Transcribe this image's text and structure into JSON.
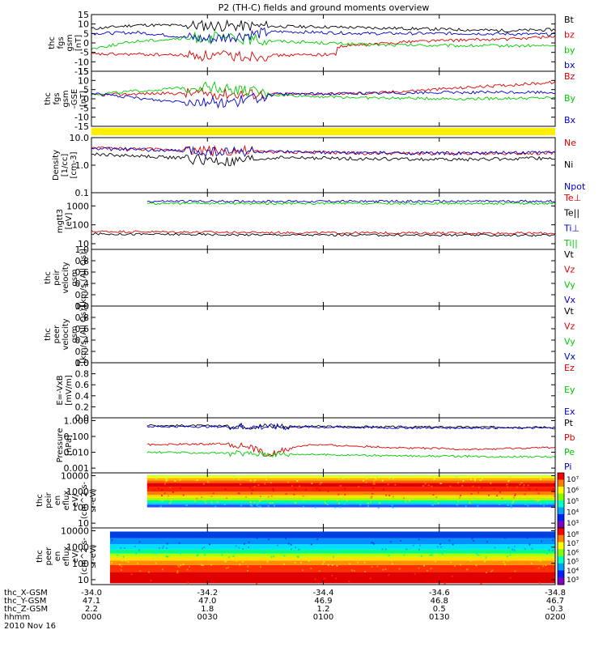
{
  "title": "P2 (TH-C) fields and ground moments overview",
  "colors": {
    "black": "#000000",
    "red": "#dd0000",
    "green": "#00cc00",
    "blue": "#0000cc",
    "yellow": "#ffee00",
    "white": "#ffffff"
  },
  "chart_data": [
    {
      "type": "line",
      "ylabel": [
        "thc",
        "fgs",
        "gsm",
        "[nT]"
      ],
      "ylim": [
        -15,
        15
      ],
      "yticks": [
        "15",
        "10",
        "5",
        "0",
        "-5",
        "-10",
        "-15"
      ],
      "legend": [
        {
          "name": "Bt",
          "color": "black"
        },
        {
          "name": "bz",
          "color": "red"
        },
        {
          "name": "by",
          "color": "green"
        },
        {
          "name": "bx",
          "color": "blue"
        }
      ],
      "series": [
        {
          "name": "Bt",
          "color": "black",
          "points": [
            [
              0,
              7.5
            ],
            [
              0.1,
              9.5
            ],
            [
              0.3,
              9
            ],
            [
              0.5,
              8.5
            ],
            [
              0.7,
              7.5
            ],
            [
              0.9,
              6.5
            ],
            [
              1,
              7
            ]
          ]
        },
        {
          "name": "bz",
          "color": "red",
          "points": [
            [
              0,
              -6
            ],
            [
              0.1,
              -6
            ],
            [
              0.3,
              -7
            ],
            [
              0.53,
              -6
            ],
            [
              0.53,
              -2
            ],
            [
              0.7,
              1
            ],
            [
              0.9,
              2
            ],
            [
              1,
              3.5
            ]
          ]
        },
        {
          "name": "by",
          "color": "green",
          "points": [
            [
              0,
              -3
            ],
            [
              0.1,
              1
            ],
            [
              0.25,
              3
            ],
            [
              0.4,
              1
            ],
            [
              0.6,
              -1
            ],
            [
              0.8,
              -1.5
            ],
            [
              1,
              -1.5
            ]
          ]
        },
        {
          "name": "bx",
          "color": "blue",
          "points": [
            [
              0,
              5
            ],
            [
              0.1,
              5.5
            ],
            [
              0.25,
              2
            ],
            [
              0.4,
              6
            ],
            [
              0.6,
              5
            ],
            [
              0.8,
              5
            ],
            [
              1,
              4.5
            ]
          ]
        }
      ]
    },
    {
      "type": "line",
      "ylabel": [
        "thc",
        "fgs",
        "gsm",
        "-GSE",
        "[nT]"
      ],
      "ylim": [
        -15,
        15
      ],
      "yticks": [
        "15",
        "10",
        "5",
        "0",
        "-5",
        "-10",
        "-15"
      ],
      "legend": [
        {
          "name": "Bz",
          "color": "red"
        },
        {
          "name": "By",
          "color": "green"
        },
        {
          "name": "Bx",
          "color": "blue"
        }
      ],
      "series": [
        {
          "name": "Bz",
          "color": "red",
          "points": [
            [
              0,
              2
            ],
            [
              0.15,
              3
            ],
            [
              0.4,
              2.5
            ],
            [
              0.6,
              3
            ],
            [
              0.8,
              6
            ],
            [
              1,
              9
            ]
          ]
        },
        {
          "name": "By",
          "color": "green",
          "points": [
            [
              0,
              2.5
            ],
            [
              0.15,
              5
            ],
            [
              0.25,
              7
            ],
            [
              0.4,
              2
            ],
            [
              0.6,
              0.5
            ],
            [
              0.8,
              0
            ],
            [
              1,
              0.5
            ]
          ]
        },
        {
          "name": "Bx",
          "color": "blue",
          "points": [
            [
              0,
              3
            ],
            [
              0.15,
              -1
            ],
            [
              0.3,
              -2
            ],
            [
              0.4,
              2.5
            ],
            [
              0.6,
              3
            ],
            [
              0.8,
              3.5
            ],
            [
              1,
              3.5
            ]
          ]
        }
      ]
    },
    {
      "type": "line",
      "ylabel": [
        "Density",
        "[1/cc]",
        "[cm-3]"
      ],
      "scale": "log",
      "ylim": [
        0.1,
        10
      ],
      "yticks": [
        "10.0",
        "1.0",
        "0.1"
      ],
      "legend": [
        {
          "name": "Ne",
          "color": "red"
        },
        {
          "name": "Ni",
          "color": "black"
        },
        {
          "name": "Npot",
          "color": "blue"
        }
      ],
      "series": [
        {
          "name": "Ne",
          "color": "red",
          "points": [
            [
              0,
              4.2
            ],
            [
              0.2,
              3.5
            ],
            [
              0.4,
              3
            ],
            [
              0.6,
              2.7
            ],
            [
              0.8,
              2.6
            ],
            [
              1,
              2.8
            ]
          ]
        },
        {
          "name": "Ni",
          "color": "black",
          "points": [
            [
              0,
              2.5
            ],
            [
              0.2,
              1.8
            ],
            [
              0.3,
              1.2
            ],
            [
              0.4,
              1.9
            ],
            [
              0.6,
              1.7
            ],
            [
              0.8,
              1.6
            ],
            [
              1,
              1.8
            ]
          ]
        },
        {
          "name": "Npot",
          "color": "blue",
          "points": [
            [
              0,
              4
            ],
            [
              0.2,
              3.3
            ],
            [
              0.4,
              3
            ],
            [
              0.6,
              2.8
            ],
            [
              0.8,
              2.7
            ],
            [
              1,
              2.9
            ]
          ]
        }
      ]
    },
    {
      "type": "line",
      "ylabel": [
        "mgtt3",
        "[eV]"
      ],
      "scale": "log",
      "ylim": [
        5,
        5000
      ],
      "yticks": [
        "1000",
        "100",
        "10"
      ],
      "legend": [
        {
          "name": "Te⊥",
          "color": "red"
        },
        {
          "name": "Te||",
          "color": "black"
        },
        {
          "name": "Ti⊥",
          "color": "blue"
        },
        {
          "name": "Ti||",
          "color": "green"
        }
      ],
      "series": [
        {
          "name": "Ti⊥",
          "color": "blue",
          "start": 0.12,
          "points": [
            [
              0,
              1750
            ],
            [
              1,
              1750
            ]
          ]
        },
        {
          "name": "Ti||",
          "color": "green",
          "start": 0.12,
          "points": [
            [
              0,
              1350
            ],
            [
              1,
              1350
            ]
          ]
        },
        {
          "name": "Te⊥",
          "color": "red",
          "points": [
            [
              0,
              45
            ],
            [
              0.3,
              40
            ],
            [
              0.5,
              38
            ],
            [
              1,
              36
            ]
          ]
        },
        {
          "name": "Te||",
          "color": "black",
          "points": [
            [
              0,
              33
            ],
            [
              0.3,
              30
            ],
            [
              0.5,
              29
            ],
            [
              1,
              28
            ]
          ]
        }
      ]
    },
    {
      "type": "line",
      "ylabel": [
        "thc",
        "peir",
        "velocity",
        "gsm",
        "[km/s (All Qs)]"
      ],
      "ylim": [
        0,
        1
      ],
      "yticks": [
        "1.0",
        "0.8",
        "0.6",
        "0.4",
        "0.2",
        "0.0"
      ],
      "legend": [
        {
          "name": "Vt",
          "color": "black"
        },
        {
          "name": "Vz",
          "color": "red"
        },
        {
          "name": "Vy",
          "color": "green"
        },
        {
          "name": "Vx",
          "color": "blue"
        }
      ],
      "series": []
    },
    {
      "type": "line",
      "ylabel": [
        "thc",
        "peer",
        "velocity",
        "gsm",
        "[km/s (All Qs)]"
      ],
      "ylim": [
        0,
        1
      ],
      "yticks": [
        "1.0",
        "0.8",
        "0.6",
        "0.4",
        "0.2",
        "0.0"
      ],
      "legend": [
        {
          "name": "Vt",
          "color": "black"
        },
        {
          "name": "Vz",
          "color": "red"
        },
        {
          "name": "Vy",
          "color": "green"
        },
        {
          "name": "Vx",
          "color": "blue"
        }
      ],
      "series": []
    },
    {
      "type": "line",
      "ylabel": [
        "E=-VxB",
        "[mV/m]"
      ],
      "ylim": [
        0,
        1
      ],
      "yticks": [
        "1.0",
        "0.8",
        "0.6",
        "0.4",
        "0.2",
        "0.0"
      ],
      "legend": [
        {
          "name": "Ez",
          "color": "red"
        },
        {
          "name": "Ey",
          "color": "green"
        },
        {
          "name": "Ex",
          "color": "blue"
        }
      ],
      "series": []
    },
    {
      "type": "line",
      "ylabel": [
        "Pressure",
        "[nPa]"
      ],
      "scale": "log",
      "ylim": [
        0.0005,
        1.5
      ],
      "yticks": [
        "1.000",
        "0.100",
        "0.010",
        "0.001"
      ],
      "legend": [
        {
          "name": "Pt",
          "color": "black"
        },
        {
          "name": "Pb",
          "color": "red"
        },
        {
          "name": "Pe",
          "color": "green"
        },
        {
          "name": "Pi",
          "color": "blue"
        }
      ],
      "series": [
        {
          "name": "Pt",
          "color": "black",
          "start": 0.12,
          "points": [
            [
              0,
              0.5
            ],
            [
              0.3,
              0.45
            ],
            [
              0.6,
              0.4
            ],
            [
              1,
              0.38
            ]
          ]
        },
        {
          "name": "Pi",
          "color": "blue",
          "start": 0.12,
          "points": [
            [
              0,
              0.42
            ],
            [
              0.3,
              0.4
            ],
            [
              0.6,
              0.35
            ],
            [
              1,
              0.34
            ]
          ]
        },
        {
          "name": "Pb",
          "color": "red",
          "start": 0.12,
          "points": [
            [
              0,
              0.03
            ],
            [
              0.2,
              0.035
            ],
            [
              0.3,
              0.005
            ],
            [
              0.4,
              0.03
            ],
            [
              0.6,
              0.02
            ],
            [
              0.8,
              0.015
            ],
            [
              1,
              0.02
            ]
          ]
        },
        {
          "name": "Pe",
          "color": "green",
          "start": 0.12,
          "points": [
            [
              0,
              0.01
            ],
            [
              0.3,
              0.008
            ],
            [
              0.6,
              0.006
            ],
            [
              1,
              0.005
            ]
          ]
        }
      ]
    },
    {
      "type": "heatmap",
      "ylabel": [
        "thc",
        "peir",
        "en",
        "eflux",
        "eV/",
        "(cm^2-s-",
        "sr-eV)"
      ],
      "scale": "log",
      "ylim": [
        5,
        15000
      ],
      "yticks": [
        "10000",
        "1000",
        "100",
        "10"
      ],
      "xstart": 0.12,
      "ystart": 100,
      "colorbar_ticks": [
        "10⁷",
        "10⁶",
        "10⁵",
        "10⁴",
        "10³"
      ],
      "bands": [
        [
          100,
          "#2050ff"
        ],
        [
          150,
          "#00d0ff"
        ],
        [
          200,
          "#00ff90"
        ],
        [
          280,
          "#a0ff00"
        ],
        [
          400,
          "#ffe000"
        ],
        [
          600,
          "#ff8000"
        ],
        [
          1000,
          "#ff2000"
        ],
        [
          2000,
          "#e00000"
        ],
        [
          3500,
          "#ff6000"
        ],
        [
          5000,
          "#ffb000"
        ],
        [
          7000,
          "#ffff00"
        ],
        [
          9000,
          "#c0ff40"
        ],
        [
          11000,
          null
        ]
      ]
    },
    {
      "type": "heatmap",
      "ylabel": [
        "thc",
        "peer",
        "en",
        "eflux",
        "eV/",
        "(cm^2-s-",
        "sr-eV)"
      ],
      "scale": "log",
      "ylim": [
        5,
        15000
      ],
      "yticks": [
        "10000",
        "1000",
        "100",
        "10"
      ],
      "xstart": 0.04,
      "ystart": 6,
      "colorbar_ticks": [
        "10⁸",
        "10⁷",
        "10⁶",
        "10⁵",
        "10⁴",
        "10³"
      ],
      "bands": [
        [
          6,
          "#e00000"
        ],
        [
          30,
          "#ff3000"
        ],
        [
          80,
          "#ff9000"
        ],
        [
          150,
          "#ffe000"
        ],
        [
          250,
          "#b0ff00"
        ],
        [
          400,
          "#00ff80"
        ],
        [
          700,
          "#00e0ff"
        ],
        [
          1500,
          "#0090ff"
        ],
        [
          3500,
          "#0040e0"
        ],
        [
          9000,
          null
        ]
      ]
    }
  ],
  "xaxis": {
    "ticks": [
      {
        "pos": 0,
        "rows": [
          "-34.0",
          "47.1",
          "2.2",
          "0000"
        ]
      },
      {
        "pos": 0.25,
        "rows": [
          "-34.2",
          "47.0",
          "1.8",
          "0030"
        ]
      },
      {
        "pos": 0.5,
        "rows": [
          "-34.4",
          "46.9",
          "1.2",
          "0100"
        ]
      },
      {
        "pos": 0.75,
        "rows": [
          "-34.6",
          "46.8",
          "0.5",
          "0130"
        ]
      },
      {
        "pos": 1,
        "rows": [
          "-34.8",
          "46.7",
          "-0.3",
          "0200"
        ]
      }
    ],
    "row_labels": [
      "thc_X-GSM",
      "thc_Y-GSM",
      "thc_Z-GSM",
      "hhmm"
    ],
    "date": "2010 Nov 16"
  }
}
